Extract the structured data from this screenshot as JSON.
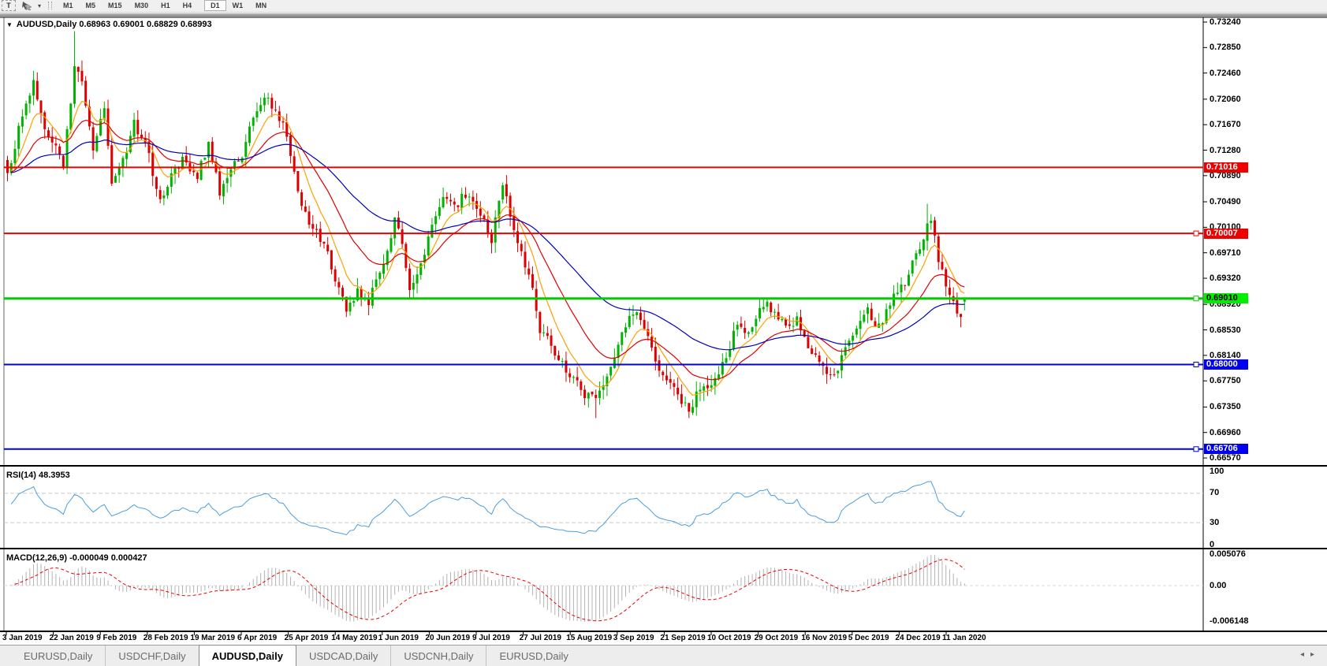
{
  "toolbar": {
    "text_tool": "T",
    "timeframes": [
      "M1",
      "M5",
      "M15",
      "M30",
      "H1",
      "H4",
      "D1",
      "W1",
      "MN"
    ],
    "active_timeframe": "D1"
  },
  "chart": {
    "title_text": "AUDUSD,Daily",
    "ohlc_text": "0.68963 0.69001 0.68829 0.68993",
    "y_ticks": [
      "0.73240",
      "0.72850",
      "0.72460",
      "0.72060",
      "0.71670",
      "0.71280",
      "0.70890",
      "0.70490",
      "0.70100",
      "0.69710",
      "0.69320",
      "0.68920",
      "0.68530",
      "0.68140",
      "0.67750",
      "0.67350",
      "0.66960",
      "0.66570"
    ],
    "x_ticks": [
      "3 Jan 2019",
      "22 Jan 2019",
      "9 Feb 2019",
      "28 Feb 2019",
      "19 Mar 2019",
      "6 Apr 2019",
      "25 Apr 2019",
      "14 May 2019",
      "1 Jun 2019",
      "20 Jun 2019",
      "9 Jul 2019",
      "27 Jul 2019",
      "15 Aug 2019",
      "3 Sep 2019",
      "21 Sep 2019",
      "10 Oct 2019",
      "29 Oct 2019",
      "16 Nov 2019",
      "5 Dec 2019",
      "24 Dec 2019",
      "11 Jan 2020"
    ],
    "hlines": [
      {
        "price": 0.71016,
        "label": "0.71016",
        "color": "#ee0000",
        "width": 2,
        "marker": false,
        "label_bg": "#ee0000",
        "label_fg": "#ffffff"
      },
      {
        "price": 0.70007,
        "label": "0.70007",
        "color": "#ee0000",
        "width": 2,
        "marker": true,
        "label_bg": "#ee0000",
        "label_fg": "#ffffff"
      },
      {
        "price": 0.6901,
        "label": "0.69010",
        "color": "#00cc00",
        "width": 3,
        "marker": true,
        "label_bg": "#00ee00",
        "label_fg": "#000000"
      },
      {
        "price": 0.68,
        "label": "0.68000",
        "color": "#0000dd",
        "width": 2,
        "marker": true,
        "label_bg": "#0000ee",
        "label_fg": "#ffffff"
      },
      {
        "price": 0.66706,
        "label": "0.66706",
        "color": "#0000dd",
        "width": 2,
        "marker": true,
        "label_bg": "#0000ee",
        "label_fg": "#ffffff"
      }
    ]
  },
  "rsi": {
    "name": "RSI(14)",
    "value": "48.3953",
    "levels": [
      "100",
      "70",
      "30",
      "0"
    ]
  },
  "macd": {
    "name": "MACD(12,26,9)",
    "values": "-0.000049 0.000427",
    "scale_max": "0.005076",
    "scale_zero": "0.00",
    "scale_min": "-0.006148"
  },
  "tabs": [
    {
      "label": "EURUSD,Daily",
      "active": false
    },
    {
      "label": "USDCHF,Daily",
      "active": false
    },
    {
      "label": "AUDUSD,Daily",
      "active": true
    },
    {
      "label": "USDCAD,Daily",
      "active": false
    },
    {
      "label": "USDCNH,Daily",
      "active": false
    },
    {
      "label": "EURUSD,Daily",
      "active": false
    }
  ],
  "tab_scroll": {
    "left": "◂",
    "right": "▸"
  },
  "chart_data": {
    "type": "candlestick",
    "symbol": "AUDUSD",
    "timeframe": "Daily",
    "x_range": [
      "3 Jan 2019",
      "11 Jan 2020"
    ],
    "y_range": [
      0.6651,
      0.7334
    ],
    "candle_count": 258,
    "up_color": "#00b300",
    "down_color": "#dd0000",
    "close_waypoints": [
      [
        0,
        0.709
      ],
      [
        3,
        0.716
      ],
      [
        7,
        0.723
      ],
      [
        10,
        0.716
      ],
      [
        13,
        0.7135
      ],
      [
        15,
        0.7105
      ],
      [
        18,
        0.7255
      ],
      [
        20,
        0.723
      ],
      [
        23,
        0.713
      ],
      [
        26,
        0.7195
      ],
      [
        28,
        0.708
      ],
      [
        31,
        0.711
      ],
      [
        34,
        0.717
      ],
      [
        38,
        0.712
      ],
      [
        41,
        0.7048
      ],
      [
        44,
        0.709
      ],
      [
        47,
        0.7115
      ],
      [
        51,
        0.709
      ],
      [
        54,
        0.714
      ],
      [
        57,
        0.7062
      ],
      [
        60,
        0.71
      ],
      [
        63,
        0.7115
      ],
      [
        66,
        0.718
      ],
      [
        69,
        0.721
      ],
      [
        72,
        0.719
      ],
      [
        75,
        0.715
      ],
      [
        79,
        0.704
      ],
      [
        82,
        0.701
      ],
      [
        85,
        0.6985
      ],
      [
        88,
        0.693
      ],
      [
        91,
        0.6885
      ],
      [
        94,
        0.691
      ],
      [
        97,
        0.6895
      ],
      [
        101,
        0.696
      ],
      [
        104,
        0.7018
      ],
      [
        106,
        0.6985
      ],
      [
        108,
        0.692
      ],
      [
        111,
        0.695
      ],
      [
        114,
        0.701
      ],
      [
        117,
        0.7052
      ],
      [
        120,
        0.704
      ],
      [
        123,
        0.7062
      ],
      [
        127,
        0.703
      ],
      [
        130,
        0.699
      ],
      [
        133,
        0.7075
      ],
      [
        136,
        0.7
      ],
      [
        140,
        0.694
      ],
      [
        143,
        0.6855
      ],
      [
        146,
        0.683
      ],
      [
        149,
        0.6798
      ],
      [
        152,
        0.6778
      ],
      [
        155,
        0.6755
      ],
      [
        158,
        0.6748
      ],
      [
        161,
        0.6778
      ],
      [
        165,
        0.6845
      ],
      [
        168,
        0.6882
      ],
      [
        172,
        0.6845
      ],
      [
        175,
        0.6792
      ],
      [
        178,
        0.677
      ],
      [
        181,
        0.6742
      ],
      [
        183,
        0.673
      ],
      [
        186,
        0.6762
      ],
      [
        190,
        0.6778
      ],
      [
        193,
        0.6815
      ],
      [
        196,
        0.686
      ],
      [
        199,
        0.6842
      ],
      [
        203,
        0.6895
      ],
      [
        206,
        0.688
      ],
      [
        209,
        0.6856
      ],
      [
        212,
        0.6868
      ],
      [
        216,
        0.682
      ],
      [
        219,
        0.6795
      ],
      [
        222,
        0.6785
      ],
      [
        225,
        0.682
      ],
      [
        228,
        0.685
      ],
      [
        231,
        0.688
      ],
      [
        234,
        0.6856
      ],
      [
        237,
        0.6895
      ],
      [
        241,
        0.6928
      ],
      [
        244,
        0.6965
      ],
      [
        247,
        0.7012
      ],
      [
        248,
        0.7025
      ],
      [
        250,
        0.6962
      ],
      [
        252,
        0.692
      ],
      [
        254,
        0.6898
      ],
      [
        256,
        0.6872
      ],
      [
        257,
        0.68993
      ]
    ],
    "wick_extremes": [
      {
        "i": 18,
        "type": "high",
        "price": 0.731
      },
      {
        "i": 158,
        "type": "low",
        "price": 0.6718
      },
      {
        "i": 183,
        "type": "low",
        "price": 0.6718
      },
      {
        "i": 247,
        "type": "high",
        "price": 0.7046
      }
    ],
    "last_candle": {
      "open": 0.68963,
      "high": 0.69001,
      "low": 0.68829,
      "close": 0.68993
    },
    "moving_averages": [
      {
        "period": 8,
        "color": "#ffa000"
      },
      {
        "period": 21,
        "color": "#e00000"
      },
      {
        "period": 55,
        "color": "#0000bb"
      }
    ],
    "horizontal_levels": [
      0.71016,
      0.70007,
      0.6901,
      0.68,
      0.66706
    ],
    "indicators": [
      {
        "name": "RSI",
        "period": 14,
        "last": 48.3953,
        "line_color": "#4a9ede",
        "levels": [
          70,
          30
        ]
      },
      {
        "name": "MACD",
        "fast": 12,
        "slow": 26,
        "signal": 9,
        "last_main": -4.9e-05,
        "last_signal": 0.000427,
        "hist_color": "#b3b3b3",
        "signal_color": "#ee0000",
        "scale_max": 0.005076,
        "scale_min": -0.006148
      }
    ]
  }
}
